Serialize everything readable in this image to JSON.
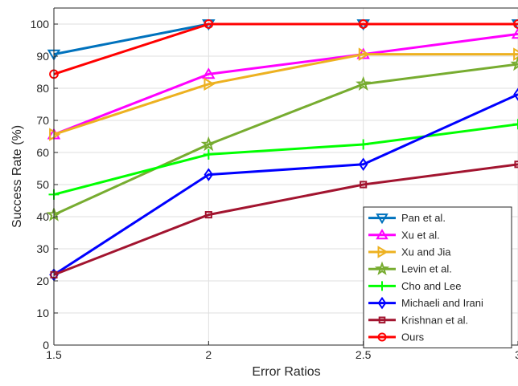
{
  "chart_data": {
    "type": "line",
    "title": "",
    "xlabel": "Error Ratios",
    "ylabel": "Success Rate (%)",
    "x": [
      1.5,
      2,
      2.5,
      3
    ],
    "xticks": [
      "1.5",
      "2",
      "2.5",
      "3"
    ],
    "yticks": [
      "0",
      "10",
      "20",
      "30",
      "40",
      "50",
      "60",
      "70",
      "80",
      "90",
      "100"
    ],
    "xlim": [
      1.5,
      3
    ],
    "ylim": [
      0,
      105
    ],
    "grid": true,
    "legend_position": "bottom-right",
    "series": [
      {
        "name": "Pan et al.",
        "values": [
          90.6,
          100,
          100,
          100
        ],
        "color": "#0072BD",
        "marker": "triangle-down"
      },
      {
        "name": "Xu et al.",
        "values": [
          65.6,
          84.4,
          90.6,
          96.9
        ],
        "color": "#FF00FF",
        "marker": "triangle-up"
      },
      {
        "name": "Xu and Jia",
        "values": [
          65.6,
          81.3,
          90.6,
          90.6
        ],
        "color": "#EDB120",
        "marker": "triangle-right"
      },
      {
        "name": "Levin et al.",
        "values": [
          40.6,
          62.5,
          81.3,
          87.5
        ],
        "color": "#77AC30",
        "marker": "star"
      },
      {
        "name": "Cho and Lee",
        "values": [
          46.9,
          59.4,
          62.5,
          68.8
        ],
        "color": "#00FF00",
        "marker": "plus"
      },
      {
        "name": "Michaeli and Irani",
        "values": [
          21.9,
          53.1,
          56.3,
          78.1
        ],
        "color": "#0000FF",
        "marker": "diamond"
      },
      {
        "name": "Krishnan et al.",
        "values": [
          21.9,
          40.6,
          50.0,
          56.3
        ],
        "color": "#A2142F",
        "marker": "square"
      },
      {
        "name": "Ours",
        "values": [
          84.4,
          100,
          100,
          100
        ],
        "color": "#FF0000",
        "marker": "circle"
      }
    ]
  }
}
